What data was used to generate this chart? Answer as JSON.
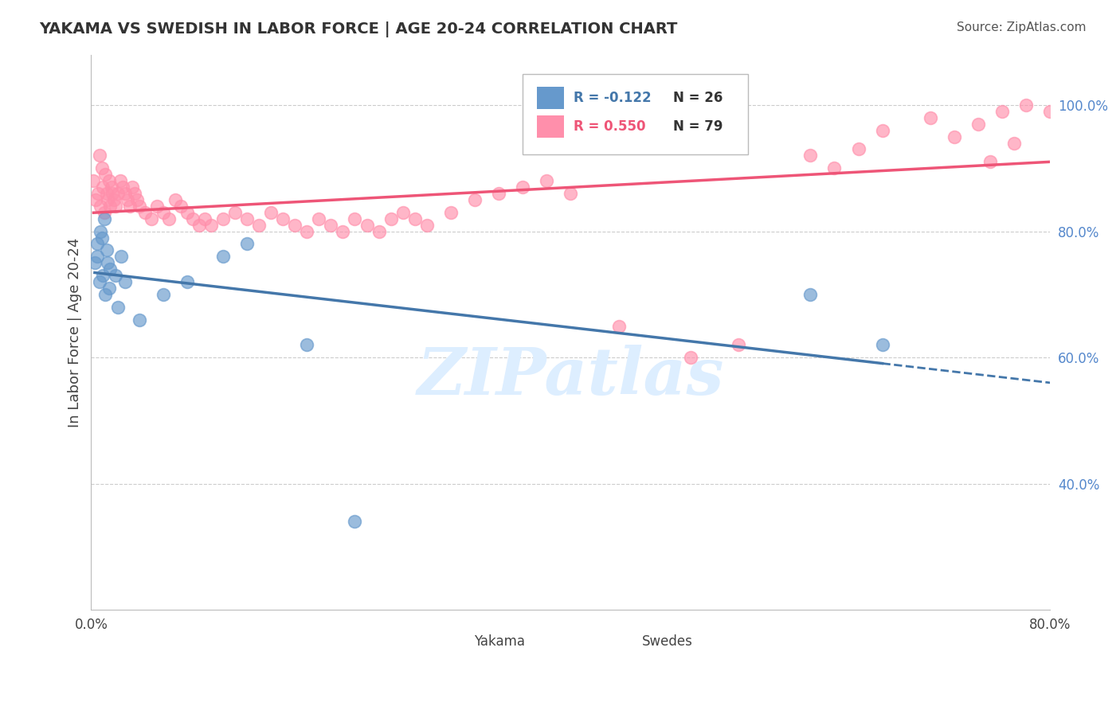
{
  "title": "YAKAMA VS SWEDISH IN LABOR FORCE | AGE 20-24 CORRELATION CHART",
  "source": "Source: ZipAtlas.com",
  "ylabel": "In Labor Force | Age 20-24",
  "xlim": [
    0.0,
    0.8
  ],
  "ylim": [
    0.2,
    1.08
  ],
  "xticks": [
    0.0,
    0.1,
    0.2,
    0.3,
    0.4,
    0.5,
    0.6,
    0.7,
    0.8
  ],
  "xticklabels": [
    "0.0%",
    "",
    "",
    "",
    "",
    "",
    "",
    "",
    "80.0%"
  ],
  "ytick_positions": [
    0.4,
    0.6,
    0.8,
    1.0
  ],
  "yticklabels": [
    "40.0%",
    "60.0%",
    "80.0%",
    "100.0%"
  ],
  "yakama_color": "#6699CC",
  "swedes_color": "#FF8FAB",
  "trendline_yakama_color": "#4477AA",
  "trendline_swedes_color": "#EE5577",
  "watermark_color": "#DDEEFF",
  "watermark_text": "ZIPatlas",
  "legend_R_yakama": "R = -0.122",
  "legend_N_yakama": "N = 26",
  "legend_R_swedes": "R = 0.550",
  "legend_N_swedes": "N = 79",
  "grid_color": "#CCCCCC",
  "background_color": "#FFFFFF",
  "yakama_x": [
    0.003,
    0.005,
    0.005,
    0.007,
    0.008,
    0.009,
    0.01,
    0.011,
    0.012,
    0.013,
    0.014,
    0.015,
    0.016,
    0.02,
    0.022,
    0.025,
    0.028,
    0.04,
    0.06,
    0.08,
    0.11,
    0.13,
    0.18,
    0.22,
    0.6,
    0.66
  ],
  "yakama_y": [
    0.75,
    0.76,
    0.78,
    0.72,
    0.8,
    0.79,
    0.73,
    0.82,
    0.7,
    0.77,
    0.75,
    0.71,
    0.74,
    0.73,
    0.68,
    0.76,
    0.72,
    0.66,
    0.7,
    0.72,
    0.76,
    0.78,
    0.62,
    0.34,
    0.7,
    0.62
  ],
  "swedes_x": [
    0.002,
    0.004,
    0.006,
    0.007,
    0.008,
    0.009,
    0.01,
    0.011,
    0.012,
    0.013,
    0.014,
    0.015,
    0.016,
    0.017,
    0.018,
    0.019,
    0.02,
    0.022,
    0.024,
    0.026,
    0.028,
    0.03,
    0.032,
    0.034,
    0.036,
    0.038,
    0.04,
    0.045,
    0.05,
    0.055,
    0.06,
    0.065,
    0.07,
    0.075,
    0.08,
    0.085,
    0.09,
    0.095,
    0.1,
    0.11,
    0.12,
    0.13,
    0.14,
    0.15,
    0.16,
    0.17,
    0.18,
    0.19,
    0.2,
    0.21,
    0.22,
    0.23,
    0.24,
    0.25,
    0.26,
    0.27,
    0.28,
    0.3,
    0.32,
    0.34,
    0.36,
    0.38,
    0.4,
    0.44,
    0.5,
    0.54,
    0.6,
    0.64,
    0.7,
    0.74,
    0.76,
    0.78,
    0.8,
    0.62,
    0.66,
    0.72,
    0.82,
    0.75,
    0.77
  ],
  "swedes_y": [
    0.88,
    0.85,
    0.86,
    0.92,
    0.84,
    0.9,
    0.87,
    0.83,
    0.89,
    0.86,
    0.85,
    0.88,
    0.84,
    0.87,
    0.86,
    0.85,
    0.84,
    0.86,
    0.88,
    0.87,
    0.86,
    0.85,
    0.84,
    0.87,
    0.86,
    0.85,
    0.84,
    0.83,
    0.82,
    0.84,
    0.83,
    0.82,
    0.85,
    0.84,
    0.83,
    0.82,
    0.81,
    0.82,
    0.81,
    0.82,
    0.83,
    0.82,
    0.81,
    0.83,
    0.82,
    0.81,
    0.8,
    0.82,
    0.81,
    0.8,
    0.82,
    0.81,
    0.8,
    0.82,
    0.83,
    0.82,
    0.81,
    0.83,
    0.85,
    0.86,
    0.87,
    0.88,
    0.86,
    0.65,
    0.6,
    0.62,
    0.92,
    0.93,
    0.98,
    0.97,
    0.99,
    1.0,
    0.99,
    0.9,
    0.96,
    0.95,
    0.98,
    0.91,
    0.94
  ]
}
